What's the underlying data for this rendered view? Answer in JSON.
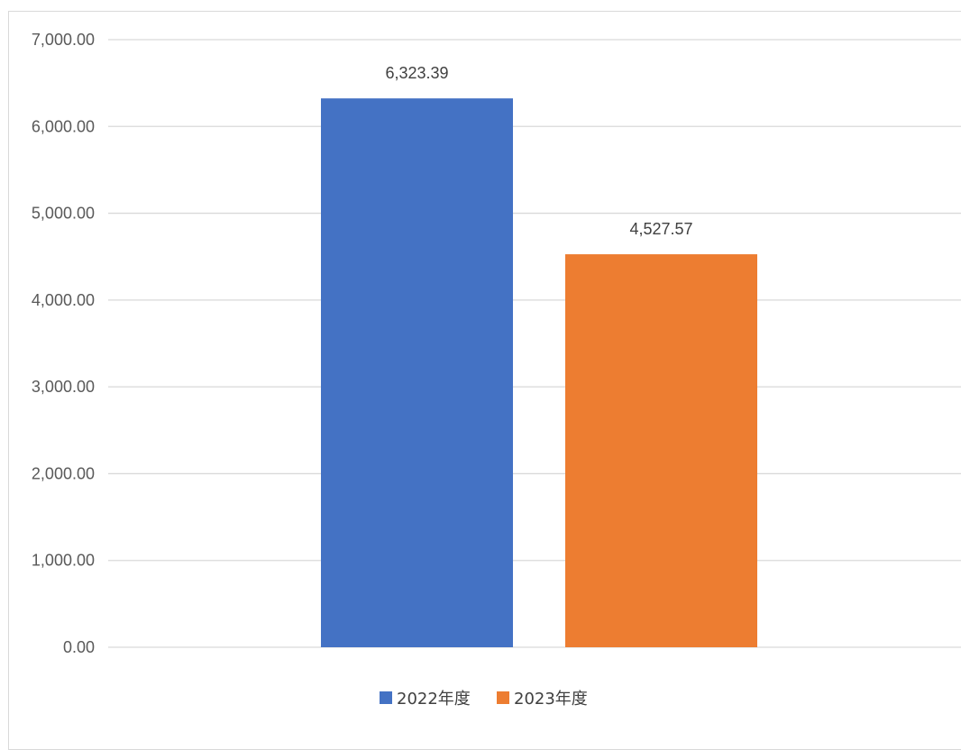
{
  "chart_data": {
    "type": "bar",
    "categories": [
      ""
    ],
    "series": [
      {
        "name": "2022年度",
        "values": [
          6323.39
        ],
        "value_labels": [
          "6,323.39"
        ],
        "color": "#4472C4"
      },
      {
        "name": "2023年度",
        "values": [
          4527.57
        ],
        "value_labels": [
          "4,527.57"
        ],
        "color": "#ED7D31"
      }
    ],
    "ylim": [
      0,
      7000
    ],
    "yticks": [
      0,
      1000,
      2000,
      3000,
      4000,
      5000,
      6000,
      7000
    ],
    "ytick_labels": [
      "0.00",
      "1,000.00",
      "2,000.00",
      "3,000.00",
      "4,000.00",
      "5,000.00",
      "6,000.00",
      "7,000.00"
    ],
    "grid": true,
    "grid_color": "#d9d9d9",
    "legend_position": "bottom",
    "title": "",
    "xlabel": "",
    "ylabel": ""
  }
}
